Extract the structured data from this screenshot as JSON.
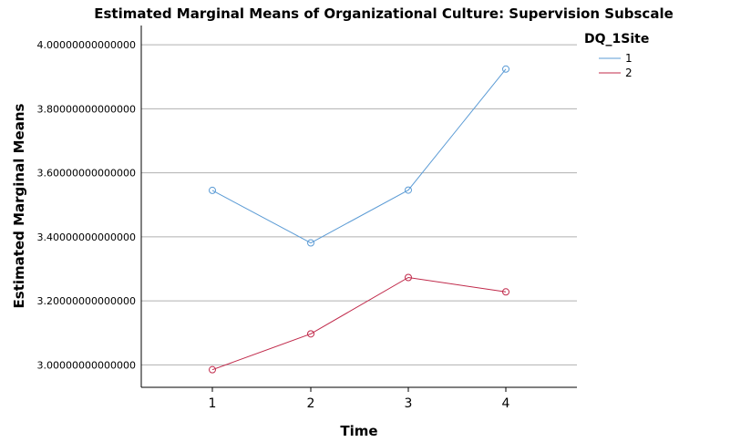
{
  "chart_data": {
    "type": "line",
    "title": "Estimated Marginal Means of Organizational Culture: Supervision Subscale",
    "xlabel": "Time",
    "ylabel": "Estimated Marginal Means",
    "categories": [
      "1",
      "2",
      "3",
      "4"
    ],
    "ylim": [
      2.93,
      4.06
    ],
    "yticks": [
      3.0,
      3.2,
      3.4,
      3.6,
      3.8,
      4.0
    ],
    "ytick_labels": [
      "3.00000000000000",
      "3.20000000000000",
      "3.40000000000000",
      "3.60000000000000",
      "3.80000000000000",
      "4.00000000000000"
    ],
    "grid": "horizontal",
    "legend_title": "DQ_1Site",
    "legend_position": "top-right",
    "series": [
      {
        "name": "1",
        "color": "#5b9bd5",
        "values": [
          3.545,
          3.381,
          3.546,
          3.924
        ]
      },
      {
        "name": "2",
        "color": "#c0294a",
        "values": [
          2.985,
          3.097,
          3.273,
          3.228
        ]
      }
    ]
  }
}
